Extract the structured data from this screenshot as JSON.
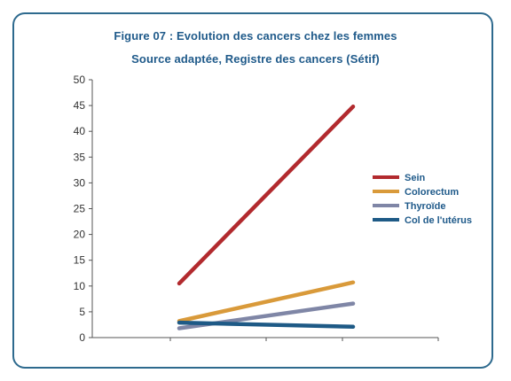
{
  "chart_data": {
    "type": "line",
    "title": "Figure 07 : Evolution des cancers chez les femmes",
    "subtitle": "Source adaptée, Registre des cancers (Sétif)",
    "xlabel": "",
    "ylabel": "",
    "ylim": [
      0,
      50
    ],
    "yticks": [
      0,
      5,
      10,
      15,
      20,
      25,
      30,
      35,
      40,
      45,
      50
    ],
    "categories": [
      "",
      ""
    ],
    "grid": false,
    "legend_position": "right",
    "series": [
      {
        "name": "Sein",
        "color": "#b22a2e",
        "values": [
          10.5,
          44.8
        ]
      },
      {
        "name": "Colorectum",
        "color": "#d99a3a",
        "values": [
          3.2,
          10.7
        ]
      },
      {
        "name": "Thyroïde",
        "color": "#7f86a6",
        "values": [
          1.8,
          6.6
        ]
      },
      {
        "name": "Col de l'utérus",
        "color": "#1e5a86",
        "values": [
          2.9,
          2.1
        ]
      }
    ]
  }
}
